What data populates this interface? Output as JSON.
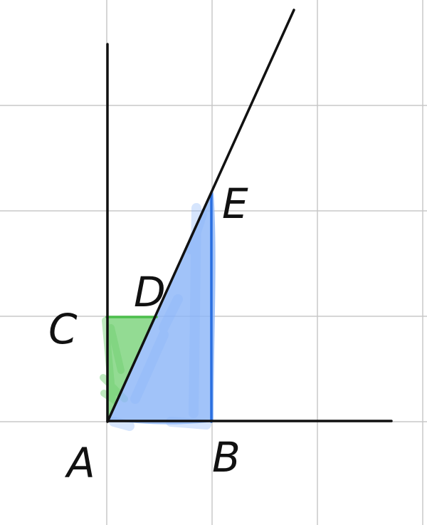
{
  "diagram": {
    "points": {
      "A": {
        "label": "A"
      },
      "B": {
        "label": "B"
      },
      "C": {
        "label": "C"
      },
      "D": {
        "label": "D"
      },
      "E": {
        "label": "E"
      }
    },
    "colors": {
      "grid": "#c8c8c8",
      "ink": "#111111",
      "blue_fill": "#8ab4f8",
      "blue_edge": "#2a6fe0",
      "green_fill": "#6fcf6f",
      "green_edge": "#4cbf4c"
    }
  }
}
